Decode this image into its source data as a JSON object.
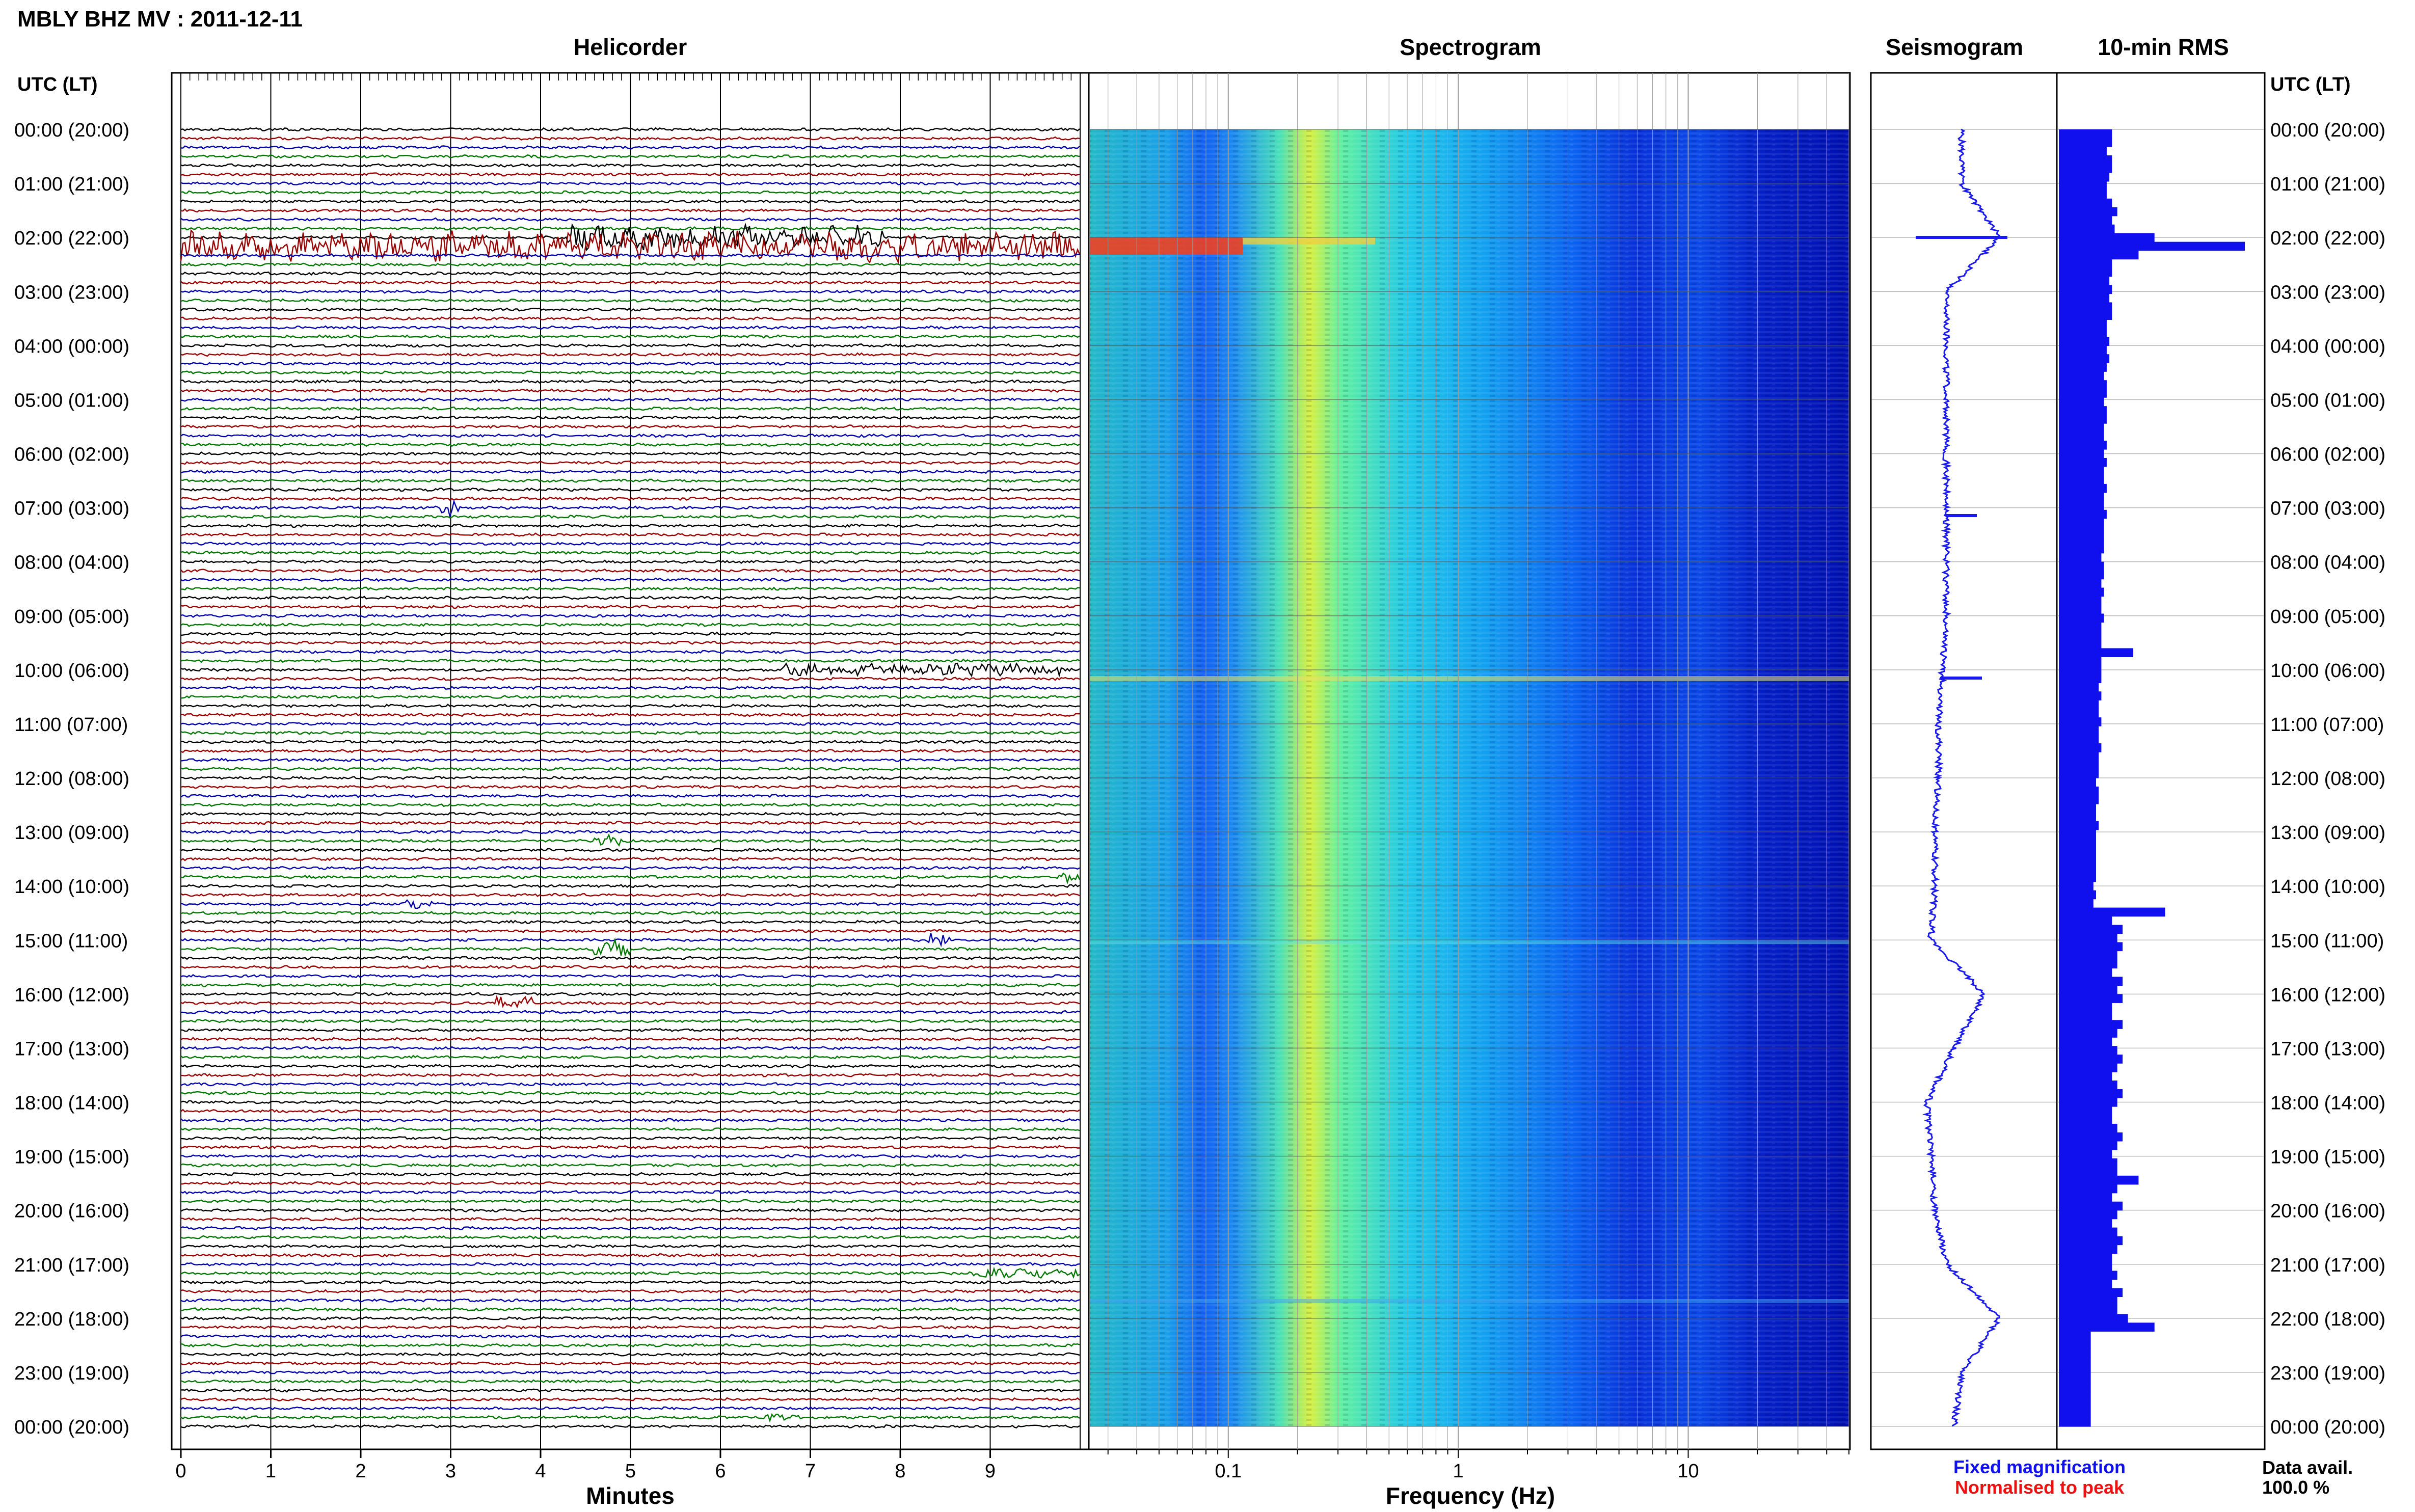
{
  "header": {
    "station_title": "MBLY BHZ MV : 2011-12-11",
    "utc_label_left": "UTC (LT)",
    "utc_label_right": "UTC (LT)"
  },
  "panels": {
    "helicorder_title": "Helicorder",
    "spectrogram_title": "Spectrogram",
    "seismogram_title": "Seismogram",
    "rms_title": "10-min RMS"
  },
  "time_labels": [
    "00:00 (20:00)",
    "01:00 (21:00)",
    "02:00 (22:00)",
    "03:00 (23:00)",
    "04:00 (00:00)",
    "05:00 (01:00)",
    "06:00 (02:00)",
    "07:00 (03:00)",
    "08:00 (04:00)",
    "09:00 (05:00)",
    "10:00 (06:00)",
    "11:00 (07:00)",
    "12:00 (08:00)",
    "13:00 (09:00)",
    "14:00 (10:00)",
    "15:00 (11:00)",
    "16:00 (12:00)",
    "17:00 (13:00)",
    "18:00 (14:00)",
    "19:00 (15:00)",
    "20:00 (16:00)",
    "21:00 (17:00)",
    "22:00 (18:00)",
    "23:00 (19:00)",
    "00:00 (20:00)"
  ],
  "legend": {
    "fixed": "Fixed magnification",
    "normalised": "Normalised to peak",
    "fixed_color": "#1010ee",
    "normalised_color": "#ee1010"
  },
  "availability": {
    "label": "Data avail.",
    "value": "100.0 %"
  },
  "colors": {
    "trace_cycle": [
      "#000000",
      "#990000",
      "#0000aa",
      "#007700"
    ],
    "seismogram": "#1a1aee",
    "rms_bar": "#1010ee",
    "gridline": "#bbbbbb"
  },
  "chart_data": [
    {
      "type": "line",
      "name": "Helicorder",
      "xlabel": "Minutes",
      "x_ticks": [
        "0",
        "1",
        "2",
        "3",
        "4",
        "5",
        "6",
        "7",
        "8",
        "9"
      ],
      "xlim": [
        0,
        10
      ],
      "rows_per_hour": 6,
      "total_rows": 144,
      "events": [
        {
          "row": 13,
          "start_min": 0,
          "end_min": 10,
          "amp": 1.0
        },
        {
          "row": 12,
          "start_min": 4.3,
          "end_min": 7.8,
          "amp": 0.8
        },
        {
          "row": 42,
          "start_min": 2.9,
          "end_min": 3.1,
          "amp": 0.6
        },
        {
          "row": 60,
          "start_min": 6.7,
          "end_min": 9.9,
          "amp": 0.4
        },
        {
          "row": 91,
          "start_min": 4.6,
          "end_min": 5.0,
          "amp": 0.6
        },
        {
          "row": 90,
          "start_min": 8.3,
          "end_min": 8.6,
          "amp": 0.5
        },
        {
          "row": 79,
          "start_min": 4.6,
          "end_min": 4.9,
          "amp": 0.4
        },
        {
          "row": 83,
          "start_min": 9.7,
          "end_min": 10.0,
          "amp": 0.4
        },
        {
          "row": 97,
          "start_min": 3.5,
          "end_min": 3.9,
          "amp": 0.4
        },
        {
          "row": 86,
          "start_min": 2.5,
          "end_min": 2.8,
          "amp": 0.3
        },
        {
          "row": 143,
          "start_min": 6.5,
          "end_min": 6.9,
          "amp": 0.3
        },
        {
          "row": 127,
          "start_min": 8.8,
          "end_min": 10.0,
          "amp": 0.3
        }
      ]
    },
    {
      "type": "heatmap",
      "name": "Spectrogram",
      "xlabel": "Frequency (Hz)",
      "x_scale": "log",
      "xlim": [
        0.025,
        50
      ],
      "x_ticks": [
        0.1,
        1,
        10
      ],
      "x_tick_labels": [
        "0.1",
        "1",
        "10"
      ],
      "peak_band_hz": [
        0.18,
        0.3
      ],
      "colormap": [
        "#00008f",
        "#0000ff",
        "#0080ff",
        "#00ffff",
        "#80ff80",
        "#ffff00",
        "#ff8000",
        "#ff0000"
      ]
    },
    {
      "type": "line",
      "name": "Seismogram",
      "values": [
        0,
        0,
        0.5,
        -0.2,
        -0.2,
        -0.2,
        -0.2,
        -0.2,
        -0.2,
        -0.2,
        -0.25,
        -0.3,
        -0.3,
        -0.35,
        -0.35,
        -0.4,
        0.3,
        -0.1,
        -0.45,
        -0.4,
        -0.35,
        -0.2,
        0.5,
        0,
        -0.1
      ]
    },
    {
      "type": "bar",
      "name": "10-min RMS",
      "values": [
        1.0,
        1.0,
        0.9,
        1.0,
        1.0,
        0.95,
        0.9,
        0.9,
        1.0,
        1.1,
        1.0,
        1.05,
        1.8,
        3.5,
        1.5,
        1.0,
        1.0,
        0.95,
        1.0,
        0.95,
        1.0,
        1.0,
        0.9,
        0.9,
        0.95,
        0.9,
        0.95,
        0.9,
        0.85,
        0.9,
        0.9,
        0.85,
        0.9,
        0.9,
        0.85,
        0.85,
        0.9,
        0.85,
        0.9,
        0.85,
        0.85,
        0.9,
        0.85,
        0.85,
        0.9,
        0.85,
        0.85,
        0.85,
        0.85,
        0.8,
        0.85,
        0.85,
        0.8,
        0.85,
        0.8,
        0.8,
        0.85,
        0.8,
        0.8,
        0.8,
        1.4,
        0.8,
        0.8,
        0.8,
        0.75,
        0.8,
        0.75,
        0.75,
        0.8,
        0.75,
        0.75,
        0.8,
        0.75,
        0.75,
        0.75,
        0.7,
        0.75,
        0.75,
        0.7,
        0.7,
        0.75,
        0.7,
        0.7,
        0.7,
        0.7,
        0.7,
        0.7,
        0.65,
        0.7,
        0.65,
        2.0,
        1.0,
        1.2,
        1.1,
        1.2,
        1.1,
        1.1,
        1.0,
        1.2,
        1.1,
        1.2,
        1.0,
        1.0,
        1.2,
        1.1,
        1.0,
        1.1,
        1.2,
        1.1,
        1.0,
        1.1,
        1.2,
        1.1,
        1.0,
        1.0,
        1.1,
        1.2,
        1.1,
        1.0,
        1.1,
        1.1,
        1.5,
        1.1,
        1.0,
        1.2,
        1.1,
        1.0,
        1.1,
        1.2,
        1.1,
        1.0,
        1.0,
        1.1,
        1.0,
        1.2,
        1.1,
        1.1,
        1.3,
        1.8,
        0.6,
        0.6,
        0.6,
        0.6,
        0.6,
        0.6,
        0.6,
        0.6,
        0.6,
        0.6,
        0.6
      ]
    }
  ]
}
